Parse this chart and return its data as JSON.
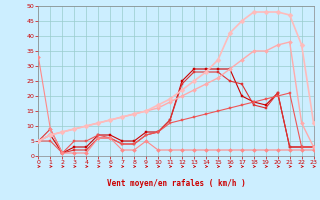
{
  "title": "",
  "xlabel": "Vent moyen/en rafales ( km/h )",
  "background_color": "#cceeff",
  "grid_color": "#99cccc",
  "x_ticks": [
    0,
    1,
    2,
    3,
    4,
    5,
    6,
    7,
    8,
    9,
    10,
    11,
    12,
    13,
    14,
    15,
    16,
    17,
    18,
    19,
    20,
    21,
    22,
    23
  ],
  "y_ticks": [
    0,
    5,
    10,
    15,
    20,
    25,
    30,
    35,
    40,
    45,
    50
  ],
  "xlim": [
    0,
    23
  ],
  "ylim": [
    0,
    50
  ],
  "series": [
    {
      "x": [
        0,
        1,
        2,
        3,
        4,
        5,
        6,
        7,
        8,
        9,
        10,
        11,
        12,
        13,
        14,
        15,
        16,
        17,
        18,
        19,
        20,
        21,
        22,
        23
      ],
      "y": [
        5,
        7,
        1,
        3,
        3,
        7,
        7,
        5,
        5,
        8,
        8,
        12,
        25,
        29,
        29,
        29,
        29,
        20,
        18,
        17,
        21,
        3,
        3,
        3
      ],
      "color": "#cc0000",
      "lw": 0.8,
      "marker": "s",
      "ms": 1.8
    },
    {
      "x": [
        0,
        1,
        2,
        3,
        4,
        5,
        6,
        7,
        8,
        9,
        10,
        11,
        12,
        13,
        14,
        15,
        16,
        17,
        18,
        19,
        20,
        21,
        22,
        23
      ],
      "y": [
        5,
        9,
        1,
        2,
        2,
        6,
        6,
        4,
        4,
        7,
        8,
        12,
        24,
        28,
        28,
        28,
        25,
        24,
        17,
        16,
        21,
        3,
        3,
        3
      ],
      "color": "#dd3333",
      "lw": 0.8,
      "marker": "s",
      "ms": 1.5
    },
    {
      "x": [
        0,
        1,
        2,
        3,
        4,
        5,
        6,
        7,
        8,
        9,
        10,
        11,
        12,
        13,
        14,
        15,
        16,
        17,
        18,
        19,
        20,
        21,
        22,
        23
      ],
      "y": [
        5,
        5,
        1,
        5,
        5,
        7,
        6,
        4,
        4,
        7,
        8,
        11,
        12,
        13,
        14,
        15,
        16,
        17,
        18,
        19,
        20,
        21,
        3,
        3
      ],
      "color": "#ee5555",
      "lw": 0.8,
      "marker": "s",
      "ms": 1.5
    },
    {
      "x": [
        0,
        1,
        2,
        3,
        4,
        5,
        6,
        7,
        8,
        9,
        10,
        11,
        12,
        13,
        14,
        15,
        16,
        17,
        18,
        19,
        20,
        21,
        22,
        23
      ],
      "y": [
        33,
        9,
        1,
        1,
        1,
        6,
        6,
        2,
        2,
        5,
        2,
        2,
        2,
        2,
        2,
        2,
        2,
        2,
        2,
        2,
        2,
        2,
        2,
        2
      ],
      "color": "#ff8888",
      "lw": 0.8,
      "marker": "D",
      "ms": 2.0
    },
    {
      "x": [
        0,
        1,
        2,
        3,
        4,
        5,
        6,
        7,
        8,
        9,
        10,
        11,
        12,
        13,
        14,
        15,
        16,
        17,
        18,
        19,
        20,
        21,
        22,
        23
      ],
      "y": [
        5,
        7,
        8,
        9,
        10,
        11,
        12,
        13,
        14,
        15,
        16,
        18,
        20,
        22,
        24,
        26,
        29,
        32,
        35,
        35,
        37,
        38,
        11,
        3
      ],
      "color": "#ffaaaa",
      "lw": 1.0,
      "marker": "D",
      "ms": 2.0
    },
    {
      "x": [
        0,
        1,
        2,
        3,
        4,
        5,
        6,
        7,
        8,
        9,
        10,
        11,
        12,
        13,
        14,
        15,
        16,
        17,
        18,
        19,
        20,
        21,
        22,
        23
      ],
      "y": [
        5,
        7,
        8,
        9,
        10,
        11,
        12,
        13,
        14,
        15,
        17,
        19,
        22,
        25,
        28,
        32,
        41,
        45,
        48,
        48,
        48,
        47,
        37,
        11
      ],
      "color": "#ffbbbb",
      "lw": 1.2,
      "marker": "D",
      "ms": 2.5
    }
  ]
}
